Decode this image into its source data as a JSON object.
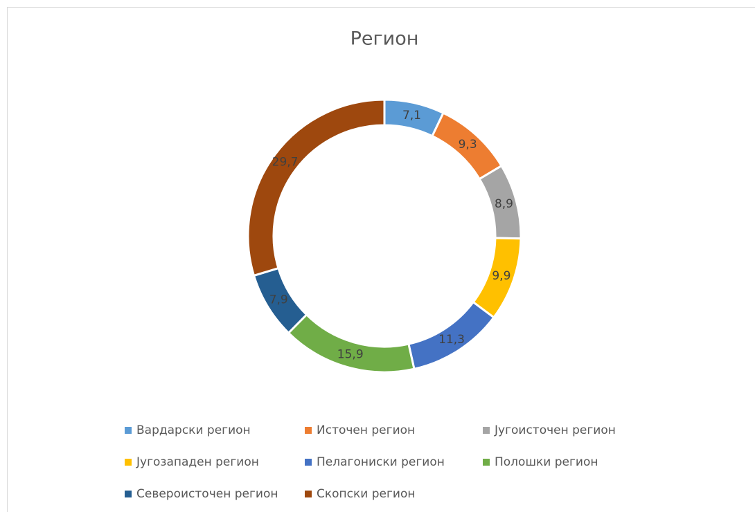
{
  "chart_data": {
    "type": "donut",
    "title": "Регион",
    "categories": [
      "Вардарски регион",
      "Источен регион",
      "Југоисточен регион",
      "Југозападен регион",
      "Пелагониски регион",
      "Полошки регион",
      "Североисточен регион",
      "Скопски регион"
    ],
    "values": [
      7.1,
      9.3,
      8.9,
      9.9,
      11.3,
      15.9,
      7.9,
      29.7
    ],
    "value_labels": [
      "7,1",
      "9,3",
      "8,9",
      "9,9",
      "11,3",
      "15,9",
      "7,9",
      "29,7"
    ],
    "colors": [
      "#5b9bd5",
      "#ed7d31",
      "#a5a5a5",
      "#ffc000",
      "#4472c4",
      "#70ad47",
      "#255e91",
      "#9e480e"
    ],
    "legend": "bottom"
  }
}
